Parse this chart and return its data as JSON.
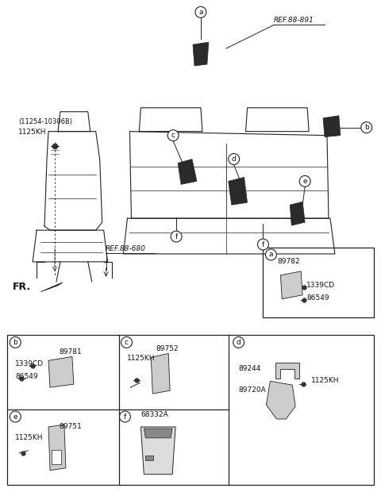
{
  "bg_color": "#ffffff",
  "line_color": "#222222",
  "text_color": "#111111",
  "fig_width": 4.8,
  "fig_height": 6.2,
  "dpi": 100,
  "ref1": "REF.88-891",
  "ref2": "REF.88-680",
  "label_topleft_1": "(11254-10306B)",
  "label_topleft_2": "1125KH",
  "fr_label": "FR.",
  "box_a_parts": [
    "89782",
    "1339CD",
    "86549"
  ],
  "box_b_parts": [
    "89781",
    "1339CD",
    "86549"
  ],
  "box_c_parts": [
    "89752",
    "1125KH"
  ],
  "box_d_parts": [
    "89244",
    "89720A",
    "1125KH"
  ],
  "box_e_parts": [
    "89751",
    "1125KH"
  ],
  "box_f_parts": [
    "68332A"
  ]
}
